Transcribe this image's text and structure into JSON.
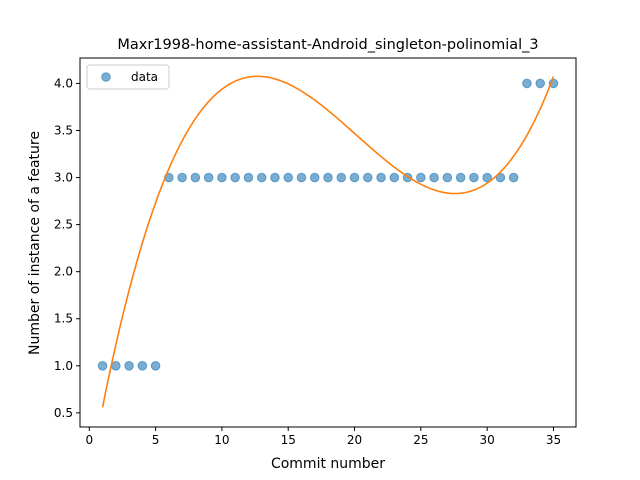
{
  "chart_data": {
    "type": "scatter",
    "title": "Maxr1998-home-assistant-Android_singleton-polinomial_3",
    "xlabel": "Commit number",
    "ylabel": "Number of instance of a feature",
    "xlim": [
      -0.7,
      36.7
    ],
    "ylim": [
      0.35,
      4.27
    ],
    "xticks": [
      0,
      5,
      10,
      15,
      20,
      25,
      30,
      35
    ],
    "yticks": [
      0.5,
      1.0,
      1.5,
      2.0,
      2.5,
      3.0,
      3.5,
      4.0
    ],
    "ytick_labels": [
      "0.5",
      "1.0",
      "1.5",
      "2.0",
      "2.5",
      "3.0",
      "3.5",
      "4.0"
    ],
    "legend": {
      "position": "upper-left",
      "entries": [
        "data"
      ]
    },
    "grid": false,
    "series": [
      {
        "name": "data",
        "kind": "scatter",
        "color": "#1f77b4",
        "x": [
          1,
          2,
          3,
          4,
          5,
          6,
          7,
          8,
          9,
          10,
          11,
          12,
          13,
          14,
          15,
          16,
          17,
          18,
          19,
          20,
          21,
          22,
          23,
          24,
          25,
          26,
          27,
          28,
          29,
          30,
          31,
          32,
          33,
          34,
          35
        ],
        "y": [
          1,
          1,
          1,
          1,
          1,
          3,
          3,
          3,
          3,
          3,
          3,
          3,
          3,
          3,
          3,
          3,
          3,
          3,
          3,
          3,
          3,
          3,
          3,
          3,
          3,
          3,
          3,
          3,
          3,
          3,
          3,
          3,
          4,
          4,
          4
        ]
      },
      {
        "kind": "line",
        "color": "#ff7f0e",
        "polynomial_degree": 3,
        "x_range": [
          1,
          35
        ],
        "coefficients": [
          -0.19,
          0.794,
          -0.04568,
          0.0007564
        ]
      }
    ]
  }
}
